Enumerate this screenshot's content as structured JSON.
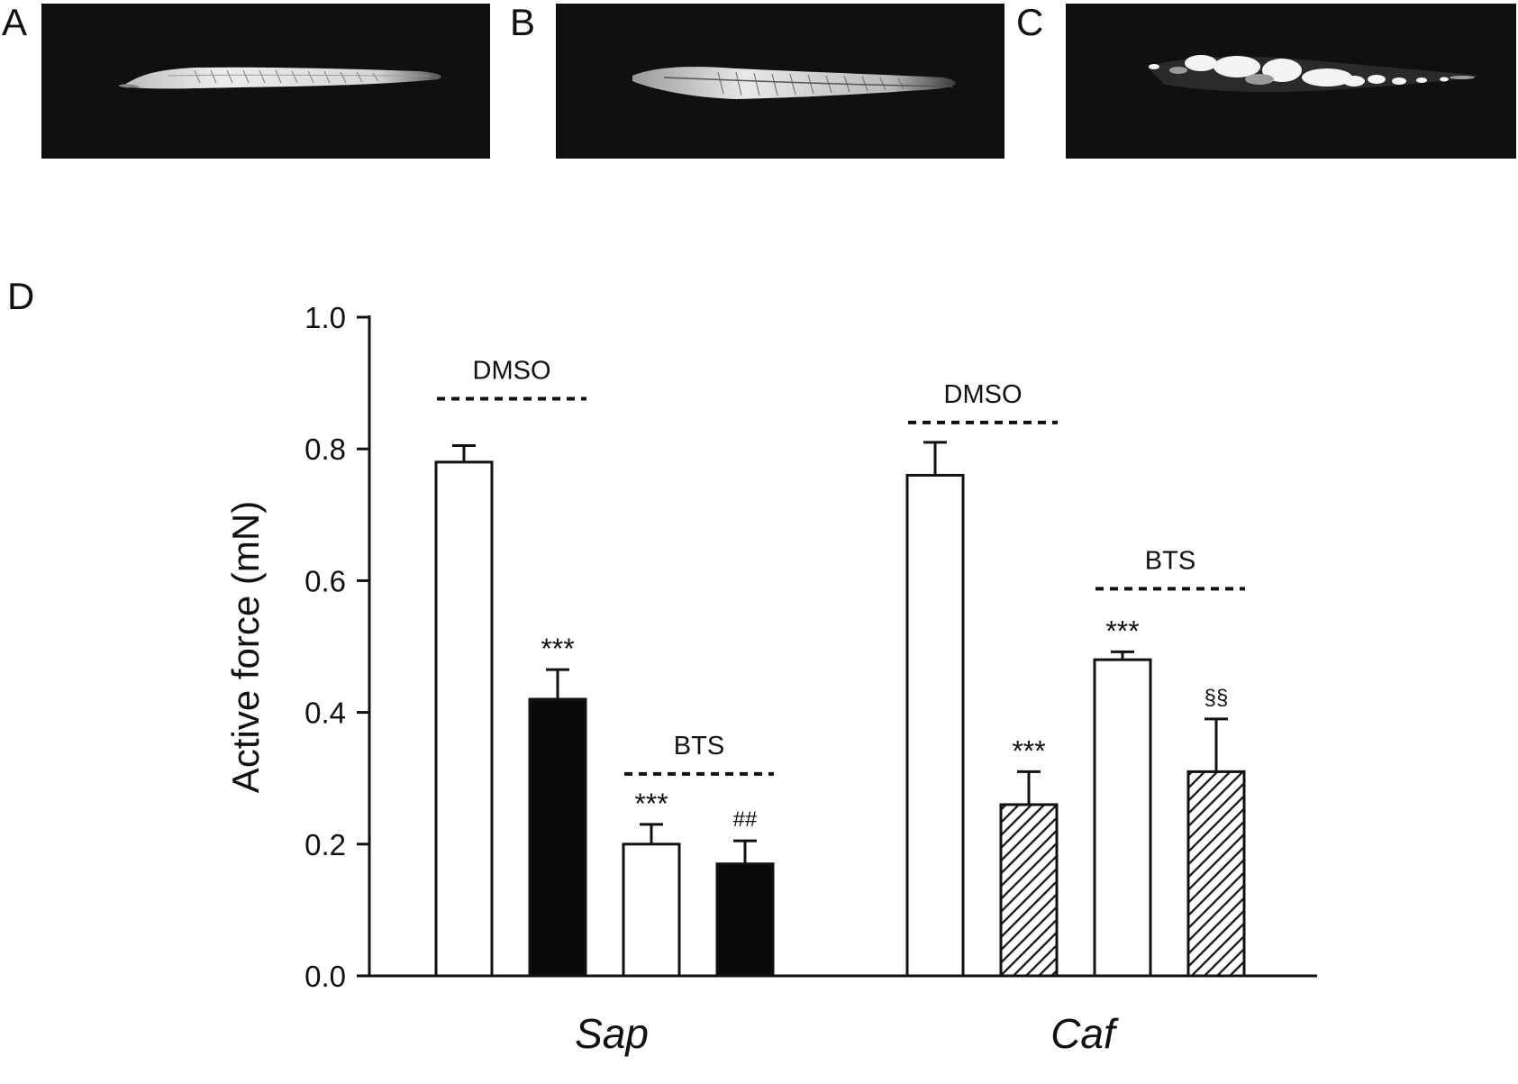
{
  "panels": {
    "a": {
      "letter": "A"
    },
    "b": {
      "letter": "B"
    },
    "c": {
      "letter": "C"
    },
    "d": {
      "letter": "D"
    }
  },
  "chart_data": {
    "type": "bar",
    "title": "",
    "ylabel": "Active force (mN)",
    "xlabel": "",
    "ylim": [
      0,
      1.0
    ],
    "yticks": [
      0.0,
      0.2,
      0.4,
      0.6,
      0.8,
      1.0
    ],
    "ytick_labels": [
      "0.0",
      "0.2",
      "0.4",
      "0.6",
      "0.8",
      "1.0"
    ],
    "grid": false,
    "legend": "none",
    "groups": [
      {
        "label": "Sap",
        "bars": [
          {
            "value": 0.78,
            "error": 0.025,
            "fill": "white",
            "annotation": ""
          },
          {
            "value": 0.42,
            "error": 0.045,
            "fill": "black",
            "annotation": "***"
          },
          {
            "value": 0.2,
            "error": 0.03,
            "fill": "white",
            "annotation": "***"
          },
          {
            "value": 0.17,
            "error": 0.035,
            "fill": "black",
            "annotation": "##"
          }
        ],
        "brackets": [
          {
            "label": "DMSO",
            "bars": [
              0,
              1
            ]
          },
          {
            "label": "BTS",
            "bars": [
              2,
              3
            ]
          }
        ]
      },
      {
        "label": "Caf",
        "bars": [
          {
            "value": 0.76,
            "error": 0.05,
            "fill": "white",
            "annotation": ""
          },
          {
            "value": 0.26,
            "error": 0.05,
            "fill": "hatched",
            "annotation": "***"
          },
          {
            "value": 0.48,
            "error": 0.012,
            "fill": "white",
            "annotation": "***"
          },
          {
            "value": 0.31,
            "error": 0.08,
            "fill": "hatched",
            "annotation": "§§"
          }
        ],
        "brackets": [
          {
            "label": "DMSO",
            "bars": [
              0,
              1
            ]
          },
          {
            "label": "BTS",
            "bars": [
              2,
              3
            ]
          }
        ]
      }
    ],
    "colors": {
      "axis": "#111111",
      "bar_stroke": "#111111",
      "bar_black": "#0a0a0a",
      "bar_white": "#ffffff"
    }
  }
}
